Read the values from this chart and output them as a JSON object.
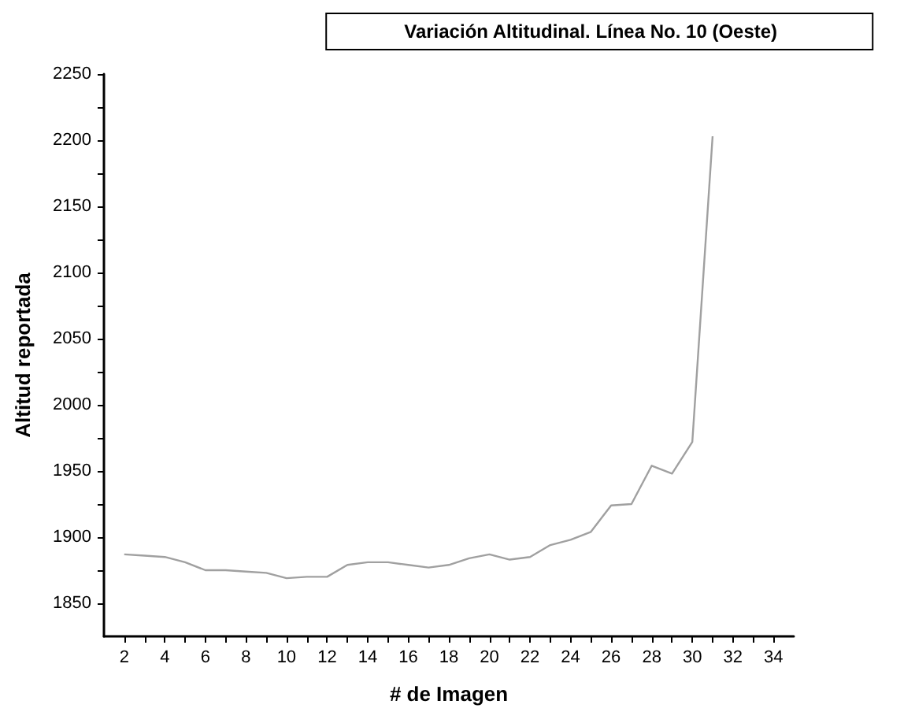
{
  "chart_data": {
    "type": "line",
    "title": "Variación Altitudinal. Línea No. 10 (Oeste)",
    "xlabel": "# de Imagen",
    "ylabel": "Altitud reportada",
    "x": [
      2,
      3,
      4,
      5,
      6,
      7,
      8,
      9,
      10,
      11,
      12,
      13,
      14,
      15,
      16,
      17,
      18,
      19,
      20,
      21,
      22,
      23,
      24,
      25,
      26,
      27,
      28,
      29,
      30,
      31
    ],
    "series": [
      {
        "color": "#a0a0a0",
        "values": [
          1887,
          1886,
          1885,
          1881,
          1875,
          1875,
          1874,
          1873,
          1869,
          1870,
          1870,
          1879,
          1881,
          1881,
          1879,
          1877,
          1879,
          1884,
          1887,
          1883,
          1885,
          1894,
          1898,
          1904,
          1924,
          1925,
          1954,
          1948,
          1972,
          2203
        ]
      }
    ],
    "xlim": [
      1,
      35
    ],
    "xticks": [
      2,
      {
        "value": 3,
        "label": null
      },
      4,
      {
        "value": 5,
        "label": null
      },
      6,
      {
        "value": 7,
        "label": null
      },
      8,
      {
        "value": 9,
        "label": null
      },
      10,
      {
        "value": 11,
        "label": null
      },
      12,
      {
        "value": 13,
        "label": null
      },
      14,
      {
        "value": 15,
        "label": null
      },
      16,
      {
        "value": 17,
        "label": null
      },
      18,
      {
        "value": 19,
        "label": null
      },
      20,
      {
        "value": 21,
        "label": null
      },
      22,
      {
        "value": 23,
        "label": null
      },
      24,
      {
        "value": 25,
        "label": null
      },
      26,
      {
        "value": 27,
        "label": null
      },
      28,
      {
        "value": 29,
        "label": null
      },
      30,
      {
        "value": 31,
        "label": null
      },
      32,
      {
        "value": 33,
        "label": null
      },
      34
    ],
    "ylim": [
      1825,
      2250
    ],
    "yticks": [
      1850,
      {
        "value": 1875,
        "label": null
      },
      1900,
      {
        "value": 1925,
        "label": null
      },
      1950,
      {
        "value": 1975,
        "label": null
      },
      2000,
      {
        "value": 2025,
        "label": null
      },
      2050,
      {
        "value": 2075,
        "label": null
      },
      2100,
      {
        "value": 2125,
        "label": null
      },
      2150,
      {
        "value": 2175,
        "label": null
      },
      2200,
      {
        "value": 2225,
        "label": null
      },
      2250
    ],
    "grid": false,
    "marker": "none",
    "line_style": "solid"
  }
}
